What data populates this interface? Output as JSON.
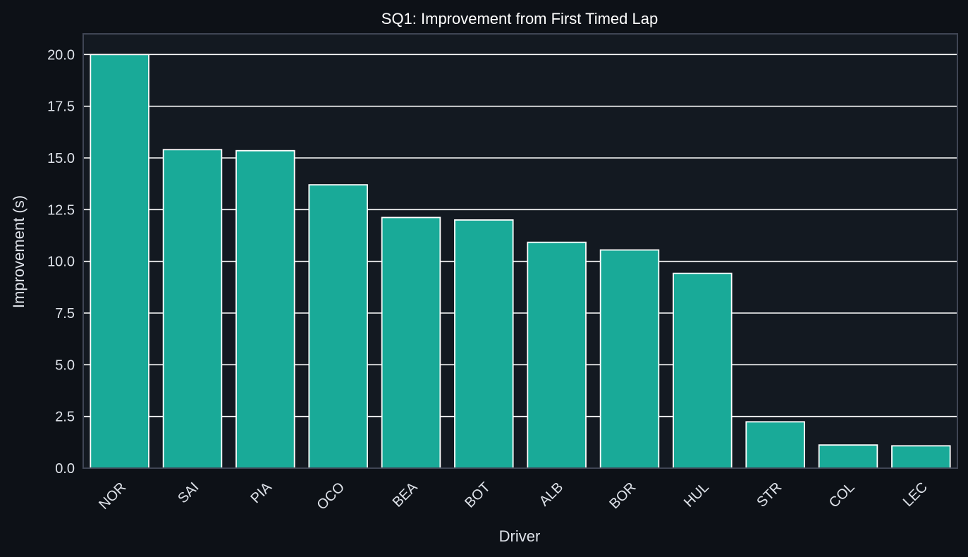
{
  "colors": {
    "figure_background": "#0d1117",
    "plot_background": "#131921",
    "bar_fill": "#19aa98",
    "bar_edge": "#ffffff",
    "grid": "#ffffff",
    "axes_edge": "#3f4554",
    "text": "#dfe3ea"
  },
  "chart_data": {
    "type": "bar",
    "title": "SQ1: Improvement from First Timed Lap",
    "xlabel": "Driver",
    "ylabel": "Improvement (s)",
    "categories": [
      "NOR",
      "SAI",
      "PIA",
      "OCO",
      "BEA",
      "BOT",
      "ALB",
      "BOR",
      "HUL",
      "STR",
      "COL",
      "LEC"
    ],
    "values": [
      20.0,
      15.4,
      15.35,
      13.7,
      12.12,
      12.0,
      10.92,
      10.55,
      9.42,
      2.24,
      1.12,
      1.08
    ],
    "ylim": [
      0,
      21
    ],
    "yticks": [
      "0.0",
      "2.5",
      "5.0",
      "7.5",
      "10.0",
      "12.5",
      "15.0",
      "17.5",
      "20.0"
    ],
    "ytick_values": [
      0,
      2.5,
      5,
      7.5,
      10,
      12.5,
      15,
      17.5,
      20
    ],
    "grid": "y",
    "xtick_rotation": "45 degrees"
  }
}
